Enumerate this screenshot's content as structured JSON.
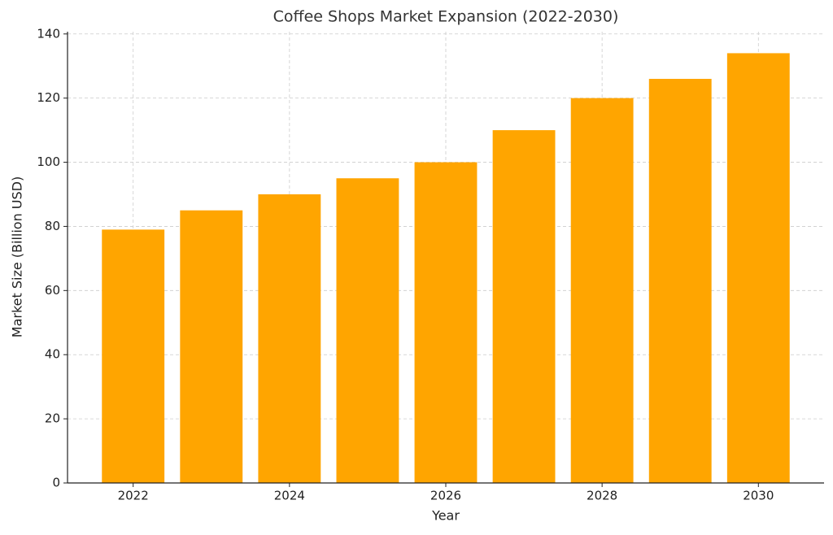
{
  "chart_data": {
    "type": "bar",
    "title": "Coffee Shops Market Expansion (2022-2030)",
    "x_label": "Year",
    "y_label": "Market Size (Billion USD)",
    "x": [
      2022,
      2023,
      2024,
      2025,
      2026,
      2027,
      2028,
      2029,
      2030
    ],
    "values": [
      79,
      85,
      90,
      95,
      100,
      110,
      120,
      126,
      134
    ],
    "color": "#ffa500",
    "xlim": [
      2021.16,
      2030.84
    ],
    "xticks": [
      2022,
      2024,
      2026,
      2028,
      2030
    ],
    "ylim": [
      0,
      140.7
    ],
    "yticks": [
      0,
      20,
      40,
      60,
      80,
      100,
      120,
      140
    ],
    "grid": true
  }
}
